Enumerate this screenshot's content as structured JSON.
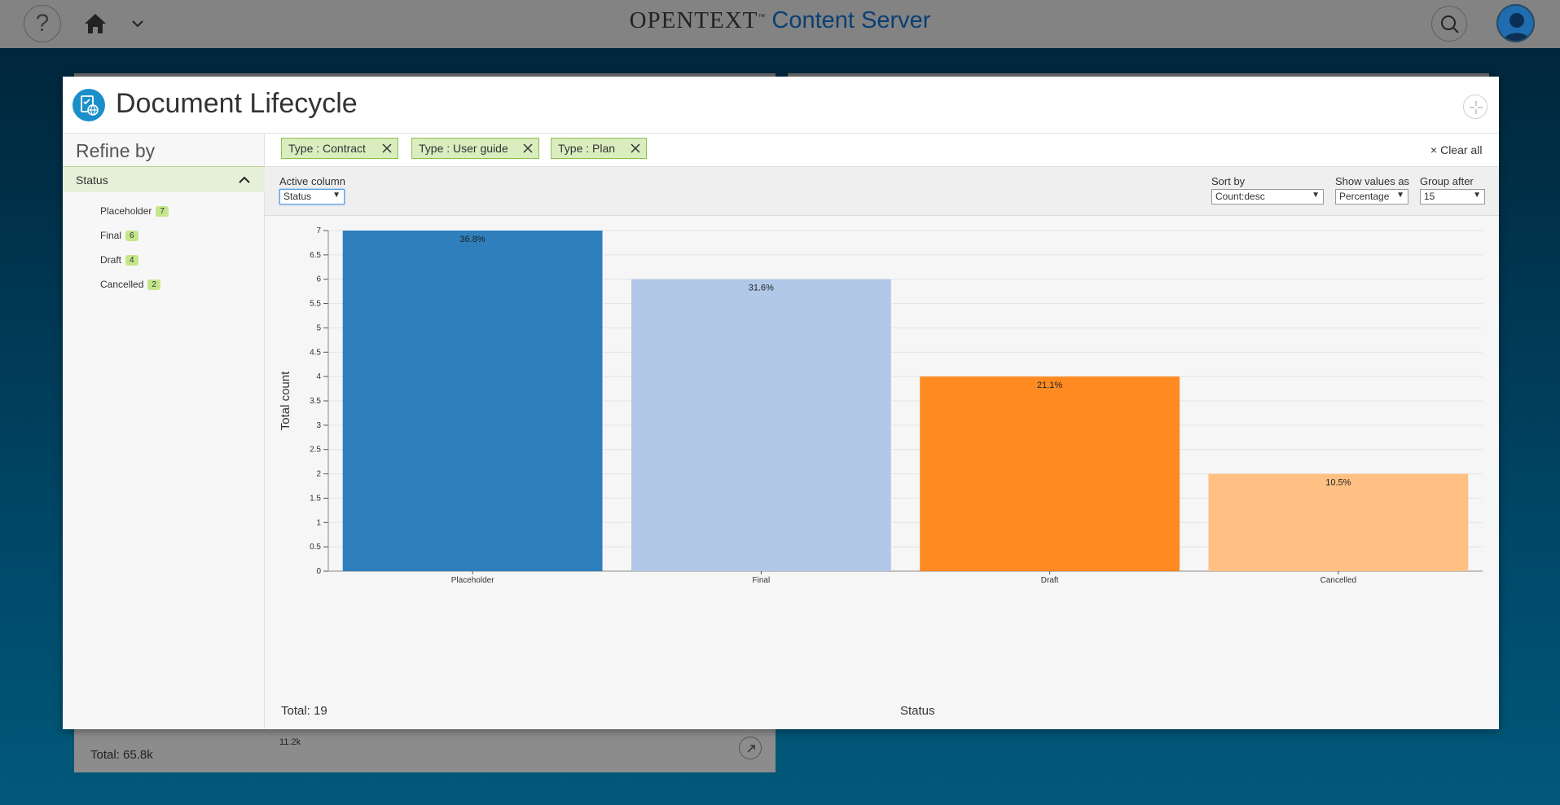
{
  "header": {
    "help_glyph": "?",
    "brand_name": "OPENTEXT",
    "brand_tm": "™",
    "product_name": "Content Server",
    "icons": [
      "help-icon",
      "home-icon",
      "chevron-down-icon",
      "search-icon",
      "user-avatar-icon"
    ]
  },
  "background": {
    "card_total": "Total: 65.8k",
    "card_value": "11.2k"
  },
  "modal": {
    "title": "Document Lifecycle",
    "icon": "document-globe-icon"
  },
  "sidebar": {
    "title": "Refine by",
    "facet_label": "Status",
    "items": [
      {
        "label": "Placeholder",
        "count": "7"
      },
      {
        "label": "Final",
        "count": "6"
      },
      {
        "label": "Draft",
        "count": "4"
      },
      {
        "label": "Cancelled",
        "count": "2"
      }
    ]
  },
  "filters": {
    "chips": [
      {
        "label": "Type : Contract"
      },
      {
        "label": "Type : User guide"
      },
      {
        "label": "Type : Plan"
      }
    ],
    "clear_all": "Clear all"
  },
  "toolbar": {
    "active_column_label": "Active column",
    "active_column_value": "Status",
    "sort_by_label": "Sort by",
    "sort_by_value": "Count:desc",
    "show_values_label": "Show values as",
    "show_values_value": "Percentage",
    "group_after_label": "Group after",
    "group_after_value": "15"
  },
  "footer": {
    "total": "Total: 19",
    "xlabel": "Status"
  },
  "chart_data": {
    "type": "bar",
    "categories": [
      "Placeholder",
      "Final",
      "Draft",
      "Cancelled"
    ],
    "values": [
      7,
      6,
      4,
      2
    ],
    "data_labels": [
      "36.8%",
      "31.6%",
      "21.1%",
      "10.5%"
    ],
    "colors": [
      "#2f7fbd",
      "#b2c8e8",
      "#ff8a22",
      "#ffc083"
    ],
    "xlabel": "Status",
    "ylabel": "Total count",
    "ylim": [
      0,
      7
    ],
    "yticks": [
      0,
      0.5,
      1,
      1.5,
      2,
      2.5,
      3,
      3.5,
      4,
      4.5,
      5,
      5.5,
      6,
      6.5,
      7
    ],
    "grid": true
  }
}
